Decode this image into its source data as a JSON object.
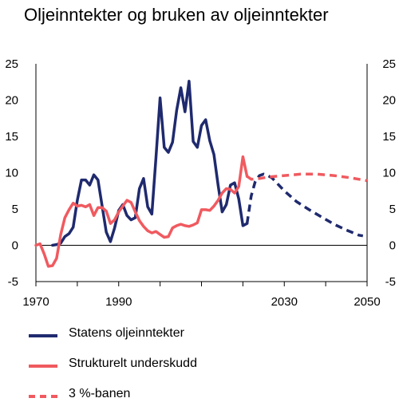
{
  "chart_data": {
    "type": "line",
    "title": "Oljeinntekter og bruken av oljeinntekter",
    "xlim": [
      1970,
      2050
    ],
    "ylim": [
      -5,
      25
    ],
    "x_ticks": [
      "1970",
      "1990",
      "2030",
      "2050"
    ],
    "y_ticks_left": [
      "25",
      "20",
      "15",
      "10",
      "5",
      "0",
      "-5"
    ],
    "y_ticks_right": [
      "25",
      "20",
      "15",
      "10",
      "5",
      "0",
      "-5"
    ],
    "grid": false,
    "legend_position": "bottom",
    "series": [
      {
        "name": "Statens oljeinntekter",
        "color": "#1f2a6e",
        "style": "solid",
        "points": [
          [
            1974,
            0
          ],
          [
            1975,
            0.1
          ],
          [
            1976,
            0.3
          ],
          [
            1977,
            1.2
          ],
          [
            1978,
            1.6
          ],
          [
            1979,
            2.5
          ],
          [
            1980,
            6.2
          ],
          [
            1981,
            9
          ],
          [
            1982,
            9
          ],
          [
            1983,
            8.3
          ],
          [
            1984,
            9.7
          ],
          [
            1985,
            9
          ],
          [
            1986,
            5.4
          ],
          [
            1987,
            1.8
          ],
          [
            1988,
            0.5
          ],
          [
            1989,
            2.4
          ],
          [
            1990,
            4.8
          ],
          [
            1991,
            5.6
          ],
          [
            1992,
            4.1
          ],
          [
            1993,
            3.5
          ],
          [
            1994,
            3.8
          ],
          [
            1995,
            7.8
          ],
          [
            1996,
            9.2
          ],
          [
            1997,
            5.3
          ],
          [
            1998,
            4.3
          ],
          [
            1999,
            12
          ],
          [
            2000,
            20.3
          ],
          [
            2001,
            13.5
          ],
          [
            2002,
            12.8
          ],
          [
            2003,
            14.2
          ],
          [
            2004,
            18.6
          ],
          [
            2005,
            21.7
          ],
          [
            2006,
            18.4
          ],
          [
            2007,
            22.6
          ],
          [
            2008,
            14.3
          ],
          [
            2009,
            13.5
          ],
          [
            2010,
            16.5
          ],
          [
            2011,
            17.3
          ],
          [
            2012,
            14.4
          ],
          [
            2013,
            12.5
          ],
          [
            2014,
            8.3
          ],
          [
            2015,
            4.6
          ],
          [
            2016,
            5.6
          ],
          [
            2017,
            8.3
          ],
          [
            2018,
            8.6
          ],
          [
            2019,
            6.4
          ],
          [
            2020,
            2.7
          ],
          [
            2021,
            3
          ]
        ]
      },
      {
        "name": "",
        "color": "#1f2a6e",
        "style": "dashed",
        "points": [
          [
            2021,
            3
          ],
          [
            2022,
            6.8
          ],
          [
            2023,
            8.8
          ],
          [
            2024,
            9.6
          ],
          [
            2025,
            9.8
          ],
          [
            2026,
            9.6
          ],
          [
            2027,
            9.3
          ],
          [
            2028,
            8.7
          ],
          [
            2030,
            7.5
          ],
          [
            2033,
            6
          ],
          [
            2036,
            4.9
          ],
          [
            2039,
            3.9
          ],
          [
            2042,
            2.9
          ],
          [
            2045,
            2.1
          ],
          [
            2048,
            1.4
          ],
          [
            2049,
            1.3
          ]
        ]
      },
      {
        "name": "Strukturelt underskudd",
        "color": "#f05a5f",
        "style": "solid",
        "points": [
          [
            1970,
            0
          ],
          [
            1971,
            0.2
          ],
          [
            1972,
            -1.2
          ],
          [
            1973,
            -2.9
          ],
          [
            1974,
            -2.8
          ],
          [
            1975,
            -1.8
          ],
          [
            1976,
            1.5
          ],
          [
            1977,
            3.8
          ],
          [
            1978,
            4.9
          ],
          [
            1979,
            5.8
          ],
          [
            1980,
            5.4
          ],
          [
            1981,
            5.5
          ],
          [
            1982,
            5.3
          ],
          [
            1983,
            5.6
          ],
          [
            1984,
            4.1
          ],
          [
            1985,
            5.2
          ],
          [
            1986,
            5.2
          ],
          [
            1987,
            4.7
          ],
          [
            1988,
            3
          ],
          [
            1989,
            3.5
          ],
          [
            1990,
            4.6
          ],
          [
            1991,
            5.4
          ],
          [
            1992,
            6.2
          ],
          [
            1993,
            5.9
          ],
          [
            1994,
            4.6
          ],
          [
            1995,
            3.4
          ],
          [
            1996,
            2.6
          ],
          [
            1997,
            2
          ],
          [
            1998,
            1.7
          ],
          [
            1999,
            1.9
          ],
          [
            2000,
            1.5
          ],
          [
            2001,
            1.1
          ],
          [
            2002,
            1.2
          ],
          [
            2003,
            2.4
          ],
          [
            2004,
            2.7
          ],
          [
            2005,
            2.9
          ],
          [
            2006,
            2.7
          ],
          [
            2007,
            2.6
          ],
          [
            2008,
            2.8
          ],
          [
            2009,
            3.1
          ],
          [
            2010,
            4.9
          ],
          [
            2011,
            4.9
          ],
          [
            2012,
            4.8
          ],
          [
            2013,
            5.4
          ],
          [
            2014,
            6.2
          ],
          [
            2015,
            7.2
          ],
          [
            2016,
            7.8
          ],
          [
            2017,
            7.7
          ],
          [
            2018,
            7.2
          ],
          [
            2019,
            8.1
          ],
          [
            2020,
            12.2
          ],
          [
            2021,
            9.5
          ]
        ]
      },
      {
        "name": "3 %-banen",
        "color": "#f05a5f",
        "style": "dashed",
        "points": [
          [
            2021,
            9.5
          ],
          [
            2022,
            9.1
          ],
          [
            2024,
            9.2
          ],
          [
            2026,
            9.4
          ],
          [
            2030,
            9.6
          ],
          [
            2034,
            9.8
          ],
          [
            2038,
            9.8
          ],
          [
            2042,
            9.6
          ],
          [
            2046,
            9.3
          ],
          [
            2050,
            8.9
          ]
        ]
      }
    ]
  },
  "legend": {
    "items": [
      {
        "label": "Statens oljeinntekter",
        "color": "#1f2a6e",
        "style": "solid"
      },
      {
        "label": "Strukturelt underskudd",
        "color": "#f05a5f",
        "style": "solid"
      },
      {
        "label": "3 %-banen",
        "color": "#f05a5f",
        "style": "dashed"
      }
    ]
  }
}
